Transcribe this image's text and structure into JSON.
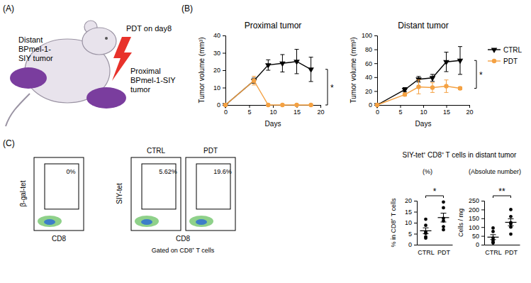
{
  "panel_labels": [
    "(A)",
    "(B)",
    "(C)"
  ],
  "diagram": {
    "distant_label": [
      "Distant",
      "BPmel-1-",
      "SIY tumor"
    ],
    "treatment_label": "PDT on day8",
    "proximal_label": [
      "Proximal",
      "BPmel-1-SIY",
      "tumor"
    ]
  },
  "chart_data": [
    {
      "type": "line",
      "title": "Proximal tumor",
      "x_label": "Days",
      "y_label": "Tumor volume (mm³)",
      "x": [
        0,
        6,
        9,
        12,
        15,
        18
      ],
      "xlim": [
        0,
        20
      ],
      "xticks": [
        0,
        5,
        10,
        15,
        20
      ],
      "ylim": [
        0,
        40
      ],
      "yticks": [
        0,
        10,
        20,
        30,
        40
      ],
      "significance": "*",
      "series": [
        {
          "name": "CTRL",
          "color": "#000000",
          "marker": "triangle-down",
          "values": [
            0,
            14,
            23,
            24,
            25,
            20.5
          ],
          "error": [
            0,
            1.5,
            3,
            5,
            7,
            7
          ]
        },
        {
          "name": "PDT",
          "color": "#f4a142",
          "marker": "circle",
          "values": [
            0,
            14,
            0,
            0,
            0,
            0
          ],
          "error": [
            0,
            2.5,
            0,
            0,
            0,
            0
          ]
        }
      ]
    },
    {
      "type": "line",
      "title": "Distant tumor",
      "x_label": "Days",
      "y_label": "Tumor volume (mm³)",
      "x": [
        0,
        6,
        9,
        12,
        15,
        18
      ],
      "xlim": [
        0,
        20
      ],
      "xticks": [
        0,
        5,
        10,
        15,
        20
      ],
      "ylim": [
        0,
        100
      ],
      "yticks": [
        0,
        20,
        40,
        60,
        80,
        100
      ],
      "significance": "*",
      "legend": "right",
      "series": [
        {
          "name": "CTRL",
          "color": "#000000",
          "marker": "triangle-down",
          "values": [
            0,
            22,
            37,
            39,
            62,
            64
          ],
          "error": [
            0,
            3,
            4,
            5,
            14,
            20
          ]
        },
        {
          "name": "PDT",
          "color": "#f4a142",
          "marker": "circle",
          "values": [
            0,
            15,
            26,
            25,
            27,
            24
          ],
          "error": [
            0,
            2,
            10,
            7,
            9,
            2
          ]
        }
      ]
    },
    {
      "type": "dot",
      "subtitle": "(%)",
      "y_label": "% in CD8⁺ T cells",
      "categories": [
        "CTRL",
        "PDT"
      ],
      "points": [
        [
          11.6,
          8.8,
          5.8,
          5.2,
          3.6,
          3.0
        ],
        [
          19.4,
          16.8,
          12.0,
          10.8,
          8.2,
          6.8
        ]
      ],
      "mean": [
        6.33,
        12.33
      ],
      "error": [
        1.34,
        2.0
      ],
      "ylim": [
        0,
        20
      ],
      "yticks": [
        0,
        5,
        10,
        15,
        20
      ],
      "significance": "*",
      "color": "#000000"
    },
    {
      "type": "dot",
      "subtitle": "(Absolute number)",
      "y_label": "Cells / mg",
      "categories": [
        "CTRL",
        "PDT"
      ],
      "points": [
        [
          95,
          75,
          38,
          25,
          15,
          10
        ],
        [
          200,
          160,
          125,
          118,
          100,
          60
        ]
      ],
      "mean": [
        43,
        127.2
      ],
      "error": [
        14.1,
        19.8
      ],
      "ylim": [
        0,
        250
      ],
      "yticks": [
        0,
        50,
        100,
        150,
        200,
        250
      ],
      "significance": "**",
      "color": "#000000"
    }
  ],
  "dot_plot_title": "SIY-tet⁺ CD8⁺ T cells in distant tumor",
  "flow": {
    "left": {
      "y_label": "β-gal-tet",
      "x_label": "CD8",
      "gate_label": "0%"
    },
    "right": {
      "y_label": "SIY-tet",
      "x_label": "CD8",
      "note": "Gated on CD8⁺ T cells",
      "plots": [
        {
          "heading": "CTRL",
          "gate_label": "5.62%"
        },
        {
          "heading": "PDT",
          "gate_label": "19.6%"
        }
      ]
    }
  }
}
